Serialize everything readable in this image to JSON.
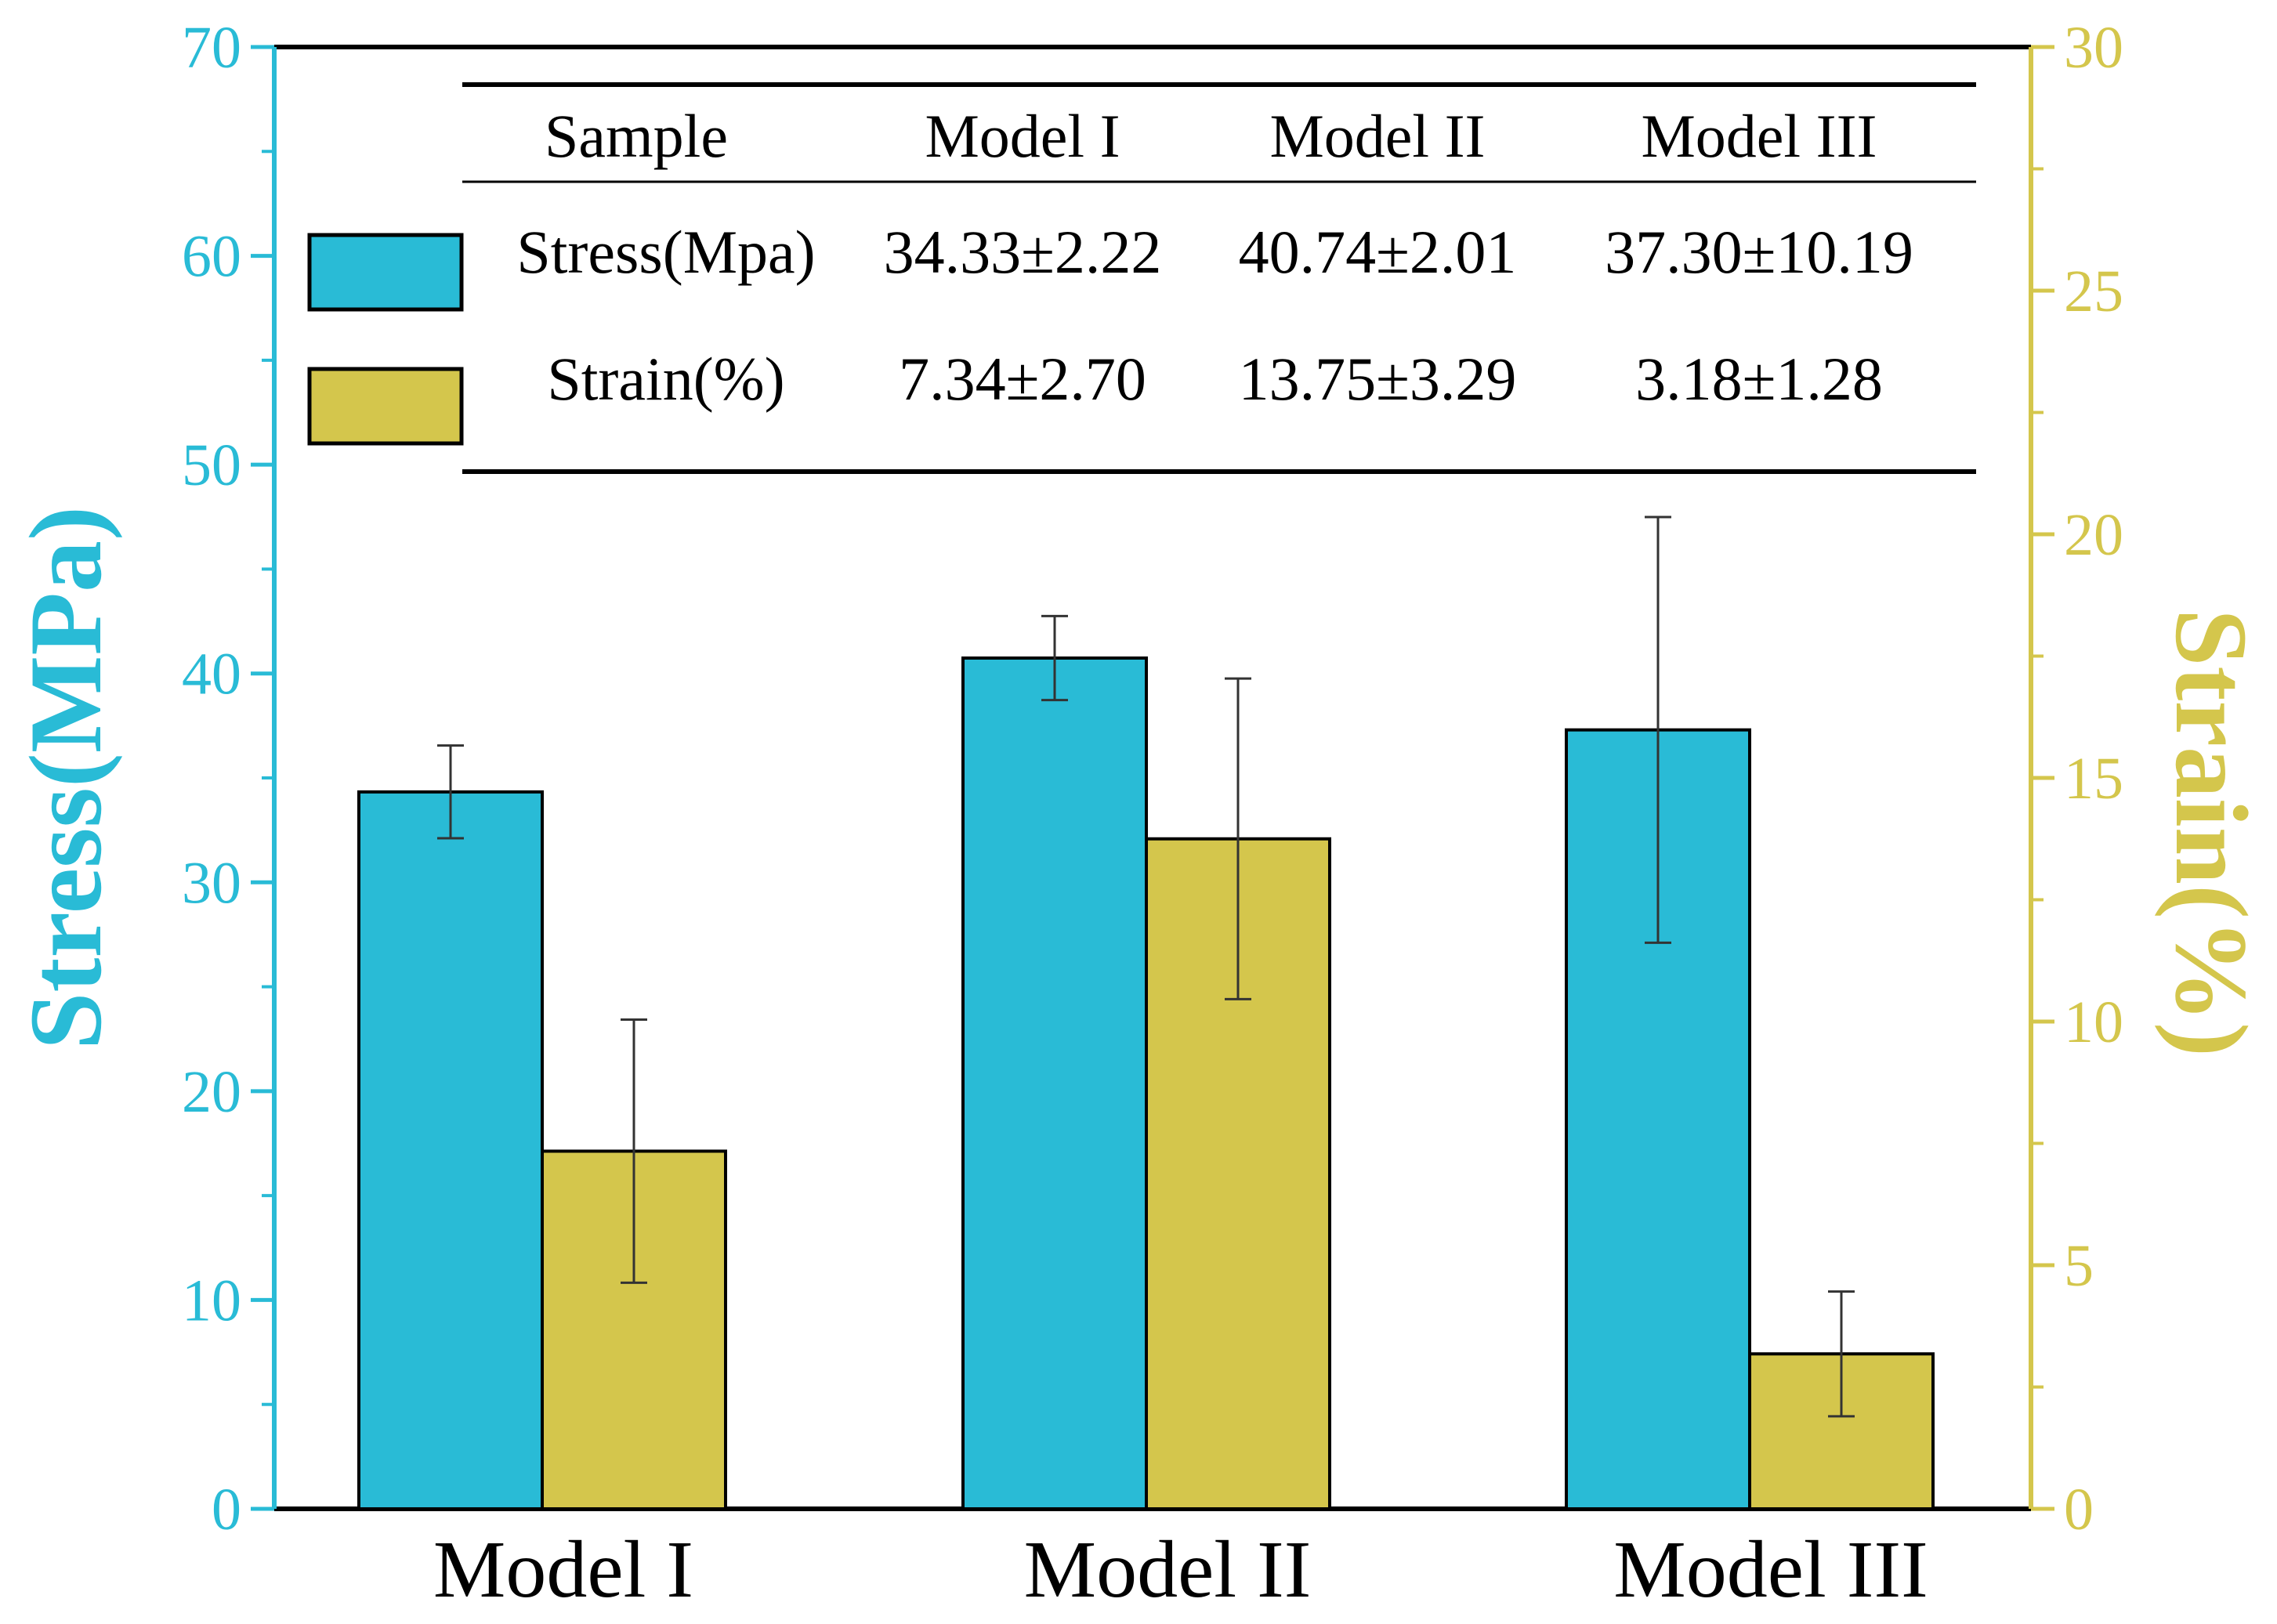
{
  "chart_data": {
    "type": "bar",
    "categories": [
      "Model I",
      "Model II",
      "Model III"
    ],
    "series": [
      {
        "key": "stress",
        "values": [
          34.33,
          40.74,
          37.3
        ],
        "errors": [
          2.22,
          2.01,
          10.19
        ],
        "axis": "left",
        "color": "#29bbd6"
      },
      {
        "key": "strain",
        "values": [
          7.34,
          13.75,
          3.18
        ],
        "errors": [
          2.7,
          3.29,
          1.28
        ],
        "axis": "right",
        "color": "#d4c64c"
      }
    ],
    "ylabel_left": "Stress(MPa)",
    "ylabel_right": "Strain(%)",
    "ylim_left": [
      0,
      70
    ],
    "ylim_right": [
      0,
      30
    ],
    "yticks_left": [
      "0",
      "10",
      "20",
      "30",
      "40",
      "50",
      "60",
      "70"
    ],
    "yticks_right": [
      "0",
      "5",
      "10",
      "15",
      "20",
      "25",
      "30"
    ],
    "left_axis_color": "#29bbd6",
    "right_axis_color": "#d4c64c",
    "grid": false,
    "table": {
      "header": [
        "Sample",
        "Model I",
        "Model II",
        "Model III"
      ],
      "rows": [
        {
          "label": "Stress(Mpa)",
          "swatch_color": "#29bbd6",
          "cells": [
            "34.33±2.22",
            "40.74±2.01",
            "37.30±10.19"
          ]
        },
        {
          "label": "Strain(%)",
          "swatch_color": "#d4c64c",
          "cells": [
            "7.34±2.70",
            "13.75±3.29",
            "3.18±1.28"
          ]
        }
      ]
    }
  }
}
